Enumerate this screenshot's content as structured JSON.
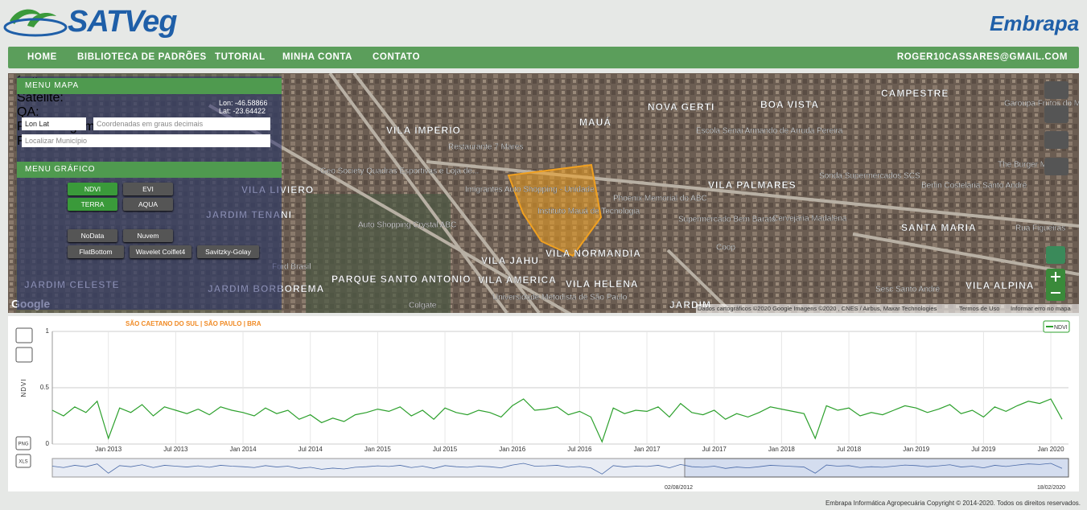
{
  "header": {
    "logo": "SATVeg",
    "partner": "Embrapa"
  },
  "nav": {
    "items": [
      "HOME",
      "BIBLIOTECA DE PADRÕES",
      "TUTORIAL",
      "MINHA CONTA",
      "CONTATO"
    ],
    "user": "ROGER10CASSARES@GMAIL.COM"
  },
  "map_menu": {
    "title": "MENU MAPA",
    "lon": "Lon: -46.58866",
    "lat": "Lat: -23.64422",
    "coord_system": "Lon Lat",
    "coord_placeholder": "Coordenadas em graus decimais",
    "municipality_placeholder": "Localizar Município"
  },
  "chart_menu": {
    "title": "MENU GRÁFICO",
    "rows": [
      {
        "label": "Índice:",
        "buttons": [
          "NDVI",
          "EVI"
        ],
        "active": 0
      },
      {
        "label": "Satélite:",
        "buttons": [
          "TERRA",
          "AQUA"
        ],
        "active": 0
      },
      {
        "label": "QA:"
      },
      {
        "label": "Pré-Filtragem:",
        "buttons": [
          "NoData",
          "Nuvem"
        ]
      },
      {
        "label": "Filtros:",
        "buttons": [
          "FlatBottom",
          "Wavelet Coiflet4",
          "Savitzky-Golay"
        ]
      }
    ]
  },
  "map": {
    "labels": [
      "VILA IMPERIO",
      "Restaurante 7 Mares",
      "MAUÁ",
      "NOVA GERTI",
      "BOA VISTA",
      "CAMPESTRE",
      "Garoupa Frutos do Mar - Campe",
      "Escola Senai Armando de Arruda Pereira",
      "Geo Society Quadras Esportivas e Loja de...",
      "Imigrantes Auto Shopping - Unidade",
      "Instituto Mauá de Tecnologia",
      "Phoenix Memorial do ABC",
      "VILA PALMARES",
      "Sonda Supermercados SCS",
      "Berlin Costelaria Santo André",
      "The Burger Map",
      "Supermercado Bem Barato",
      "Cervejaria Madalena",
      "Auto Shopping Crystal ABC",
      "SANTA MARIA",
      "Rua Figueiras",
      "Coop",
      "VILA NORMANDIA",
      "VILA JAHU",
      "PARQUE SANTO ANTONIO",
      "VILA AMERICA",
      "VILA HELENA",
      "Sesc Santo André",
      "VILA ALPINA",
      "Ford Brasil",
      "Universidade Metodista de São Paulo",
      "Colgate",
      "JARDIM",
      "JARDIM BORBOREMA",
      "VILA LIVIERO",
      "JARDIM TENANI",
      "JARDIM CELESTE"
    ],
    "google": "Google",
    "attribution": "Dados cartográficos ©2020 Google Imagens ©2020 , CNES / Airbus, Maxar Technologies",
    "terms": "Termos de Uso",
    "report": "Informar erro no mapa"
  },
  "chart_tools": {
    "export": [
      "PNG",
      "XLS"
    ]
  },
  "chart_data": {
    "type": "line",
    "title": "SÃO CAETANO DO SUL | SÃO PAULO | BRA",
    "y_label": "NDVI",
    "x": [
      "2012-08",
      "2012-09",
      "2012-10",
      "2012-11",
      "2012-12",
      "2013-01",
      "2013-02",
      "2013-03",
      "2013-04",
      "2013-05",
      "2013-06",
      "2013-07",
      "2013-08",
      "2013-09",
      "2013-10",
      "2013-11",
      "2013-12",
      "2014-01",
      "2014-02",
      "2014-03",
      "2014-04",
      "2014-05",
      "2014-06",
      "2014-07",
      "2014-08",
      "2014-09",
      "2014-10",
      "2014-11",
      "2014-12",
      "2015-01",
      "2015-02",
      "2015-03",
      "2015-04",
      "2015-05",
      "2015-06",
      "2015-07",
      "2015-08",
      "2015-09",
      "2015-10",
      "2015-11",
      "2015-12",
      "2016-01",
      "2016-02",
      "2016-03",
      "2016-04",
      "2016-05",
      "2016-06",
      "2016-07",
      "2016-08",
      "2016-09",
      "2016-10",
      "2016-11",
      "2016-12",
      "2017-01",
      "2017-02",
      "2017-03",
      "2017-04",
      "2017-05",
      "2017-06",
      "2017-07",
      "2017-08",
      "2017-09",
      "2017-10",
      "2017-11",
      "2017-12",
      "2018-01",
      "2018-02",
      "2018-03",
      "2018-04",
      "2018-05",
      "2018-06",
      "2018-07",
      "2018-08",
      "2018-09",
      "2018-10",
      "2018-11",
      "2018-12",
      "2019-01",
      "2019-02",
      "2019-03",
      "2019-04",
      "2019-05",
      "2019-06",
      "2019-07",
      "2019-08",
      "2019-09",
      "2019-10",
      "2019-11",
      "2019-12",
      "2020-01",
      "2020-02"
    ],
    "series": [
      {
        "name": "NDVI",
        "color": "#2ca02c",
        "values": [
          0.3,
          0.25,
          0.33,
          0.28,
          0.38,
          0.05,
          0.32,
          0.28,
          0.35,
          0.25,
          0.33,
          0.3,
          0.27,
          0.31,
          0.26,
          0.33,
          0.3,
          0.28,
          0.25,
          0.32,
          0.27,
          0.3,
          0.22,
          0.26,
          0.19,
          0.23,
          0.2,
          0.26,
          0.28,
          0.31,
          0.29,
          0.33,
          0.25,
          0.3,
          0.22,
          0.32,
          0.28,
          0.26,
          0.3,
          0.28,
          0.24,
          0.34,
          0.4,
          0.3,
          0.31,
          0.33,
          0.26,
          0.29,
          0.24,
          0.02,
          0.32,
          0.27,
          0.3,
          0.29,
          0.33,
          0.24,
          0.36,
          0.28,
          0.26,
          0.3,
          0.22,
          0.27,
          0.24,
          0.28,
          0.33,
          0.31,
          0.29,
          0.27,
          0.05,
          0.34,
          0.3,
          0.32,
          0.25,
          0.28,
          0.26,
          0.3,
          0.34,
          0.32,
          0.28,
          0.31,
          0.35,
          0.27,
          0.3,
          0.24,
          0.33,
          0.29,
          0.34,
          0.38,
          0.36,
          0.4,
          0.22
        ]
      }
    ],
    "xlim": [
      "2012-08",
      "2020-02"
    ],
    "xticks": [
      {
        "value": "2013-01",
        "label": "Jan 2013"
      },
      {
        "value": "2013-07",
        "label": "Jul 2013"
      },
      {
        "value": "2014-01",
        "label": "Jan 2014"
      },
      {
        "value": "2014-07",
        "label": "Jul 2014"
      },
      {
        "value": "2015-01",
        "label": "Jan 2015"
      },
      {
        "value": "2015-07",
        "label": "Jul 2015"
      },
      {
        "value": "2016-01",
        "label": "Jan 2016"
      },
      {
        "value": "2016-07",
        "label": "Jul 2016"
      },
      {
        "value": "2017-01",
        "label": "Jan 2017"
      },
      {
        "value": "2017-07",
        "label": "Jul 2017"
      },
      {
        "value": "2018-01",
        "label": "Jan 2018"
      },
      {
        "value": "2018-07",
        "label": "Jul 2018"
      },
      {
        "value": "2019-01",
        "label": "Jan 2019"
      },
      {
        "value": "2019-07",
        "label": "Jul 2019"
      },
      {
        "value": "2020-01",
        "label": "Jan 2020"
      }
    ],
    "ylim": [
      0,
      1
    ],
    "yticks": [
      0,
      0.5,
      1
    ],
    "grid": true,
    "legend": "top-right"
  },
  "navigator": {
    "start": "02/08/2012",
    "end": "18/02/2020"
  },
  "footer": "Embrapa Informática Agropecuária Copyright © 2014-2020. Todos os direitos reservados."
}
